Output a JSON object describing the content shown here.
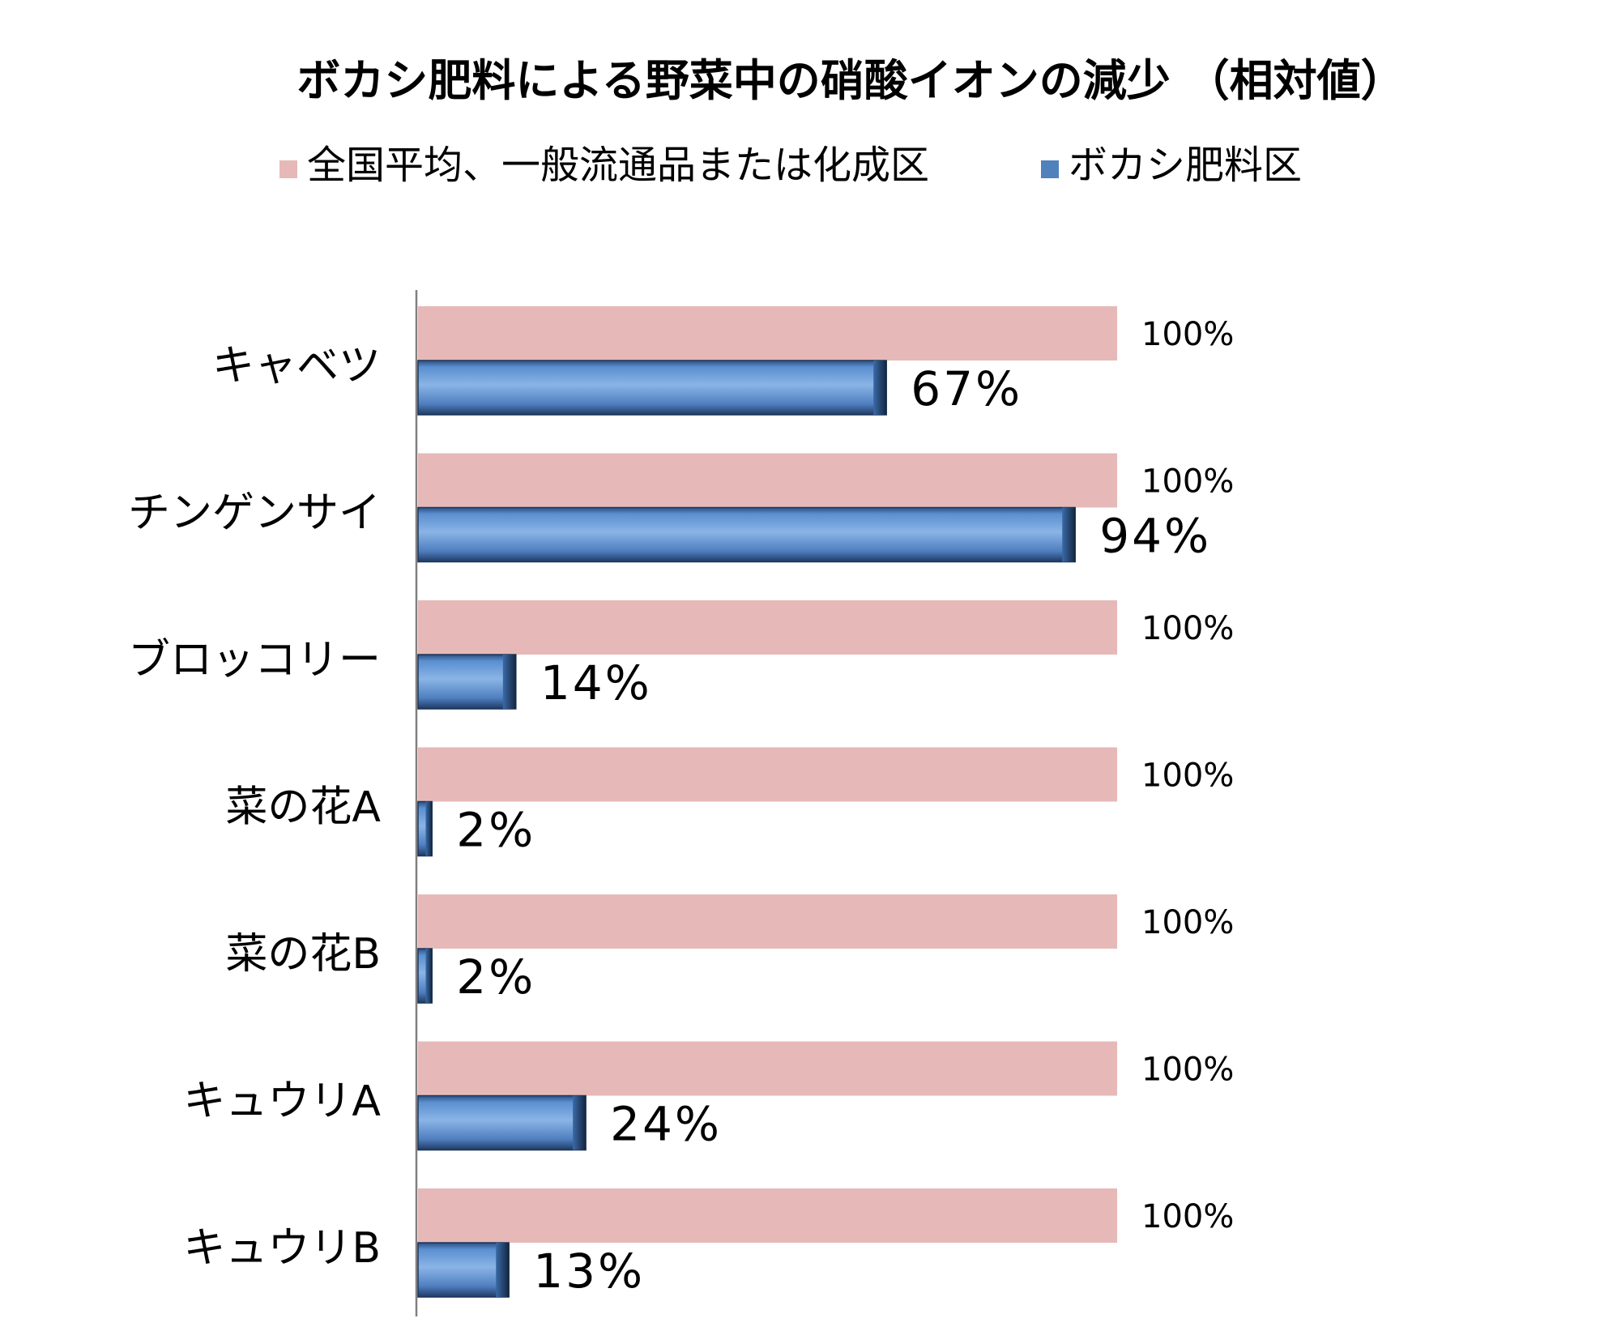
{
  "chart_data": {
    "type": "bar",
    "orientation": "horizontal",
    "title": "ボカシ肥料による野菜中の硝酸イオンの減少 （相対値）",
    "legend_position": "top",
    "categories": [
      "キャベツ",
      "チンゲンサイ",
      "ブロッコリー",
      "菜の花A",
      "菜の花B",
      "キュウリA",
      "キュウリB"
    ],
    "series": [
      {
        "name": "全国平均、一般流通品または化成区",
        "color": "#E6B9B8",
        "values": [
          100,
          100,
          100,
          100,
          100,
          100,
          100
        ],
        "labels": [
          "100%",
          "100%",
          "100%",
          "100%",
          "100%",
          "100%",
          "100%"
        ]
      },
      {
        "name": "ボカシ肥料区",
        "color": "#4F81BD",
        "values": [
          67,
          94,
          14,
          2,
          2,
          24,
          13
        ],
        "labels": [
          "67%",
          "94%",
          "14%",
          "2%",
          "2%",
          "24%",
          "13%"
        ]
      }
    ],
    "xlim": [
      0,
      100
    ],
    "grid": false
  }
}
